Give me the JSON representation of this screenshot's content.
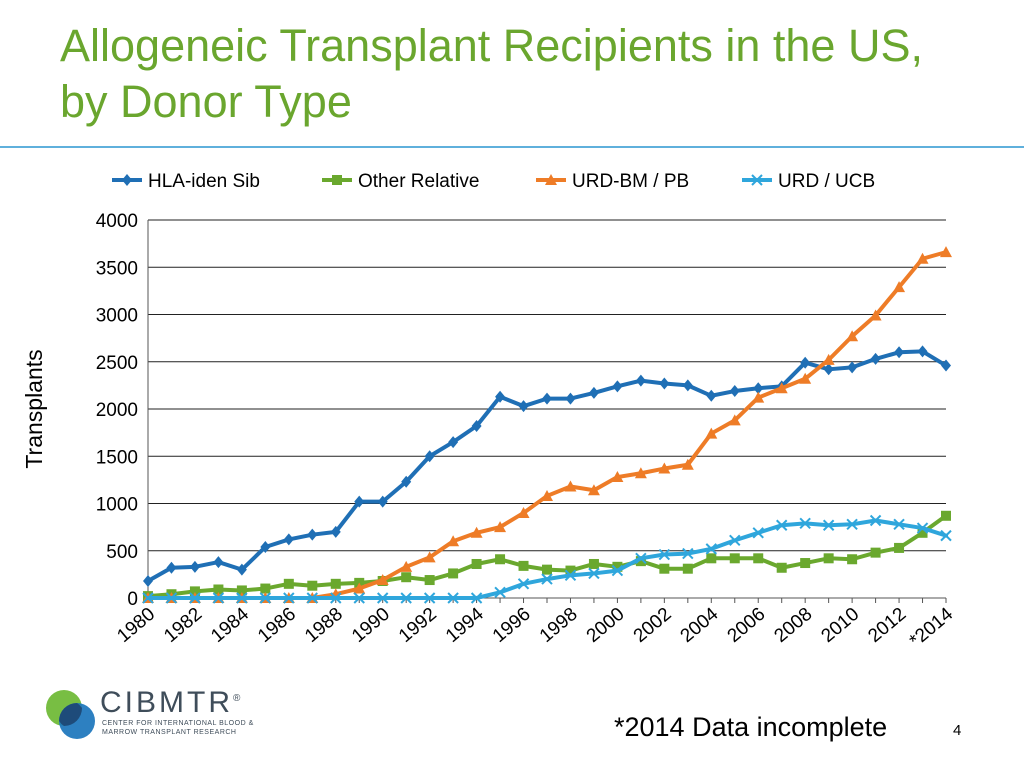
{
  "slide": {
    "title": "Allogeneic Transplant Recipients in the US, by Donor Type",
    "footnote": "*2014 Data incomplete",
    "page_number": "4"
  },
  "logo": {
    "name": "CIBMTR",
    "registered_mark": "®",
    "subtitle": "CENTER FOR INTERNATIONAL BLOOD & MARROW TRANSPLANT RESEARCH"
  },
  "colors": {
    "title": "#6aa62e",
    "rule": "#5fb0dc",
    "logo_green": "#78be43",
    "logo_blue": "#1b75bc"
  },
  "chart_data": {
    "type": "line",
    "title": "",
    "xlabel": "",
    "ylabel": "Transplants",
    "ylim": [
      0,
      4000
    ],
    "yticks": [
      0,
      500,
      1000,
      1500,
      2000,
      2500,
      3000,
      3500,
      4000
    ],
    "grid": "horizontal",
    "legend_position": "top",
    "x": [
      1980,
      1981,
      1982,
      1983,
      1984,
      1985,
      1986,
      1987,
      1988,
      1989,
      1990,
      1991,
      1992,
      1993,
      1994,
      1995,
      1996,
      1997,
      1998,
      1999,
      2000,
      2001,
      2002,
      2003,
      2004,
      2005,
      2006,
      2007,
      2008,
      2009,
      2010,
      2011,
      2012,
      2013,
      2014
    ],
    "x_tick_labels": [
      "1980",
      "1982",
      "1984",
      "1986",
      "1988",
      "1990",
      "1992",
      "1994",
      "1996",
      "1998",
      "2000",
      "2002",
      "2004",
      "2006",
      "2008",
      "2010",
      "2012",
      "*2014"
    ],
    "series": [
      {
        "name": "HLA-iden Sib",
        "color": "#1f6fb5",
        "marker": "diamond",
        "values": [
          180,
          320,
          330,
          380,
          300,
          540,
          620,
          670,
          700,
          1020,
          1020,
          1230,
          1500,
          1650,
          1820,
          2130,
          2030,
          2110,
          2110,
          2170,
          2240,
          2300,
          2270,
          2250,
          2140,
          2190,
          2220,
          2240,
          2490,
          2420,
          2440,
          2530,
          2600,
          2610,
          2460
        ]
      },
      {
        "name": "Other Relative",
        "color": "#6aa82e",
        "marker": "square",
        "values": [
          20,
          40,
          70,
          90,
          80,
          100,
          150,
          130,
          150,
          160,
          180,
          220,
          190,
          260,
          360,
          410,
          340,
          300,
          290,
          360,
          330,
          390,
          310,
          310,
          420,
          420,
          420,
          320,
          370,
          420,
          410,
          480,
          530,
          690,
          870
        ]
      },
      {
        "name": "URD-BM / PB",
        "color": "#ee7c27",
        "marker": "triangle",
        "values": [
          0,
          0,
          0,
          0,
          0,
          0,
          0,
          0,
          40,
          100,
          190,
          330,
          430,
          600,
          690,
          750,
          900,
          1080,
          1180,
          1140,
          1280,
          1320,
          1370,
          1410,
          1740,
          1880,
          2120,
          2220,
          2320,
          2520,
          2770,
          2990,
          3290,
          3590,
          3660
        ]
      },
      {
        "name": "URD / UCB",
        "color": "#2fa6dc",
        "marker": "x",
        "values": [
          0,
          0,
          0,
          0,
          0,
          0,
          0,
          0,
          0,
          0,
          0,
          0,
          0,
          0,
          0,
          60,
          150,
          200,
          240,
          260,
          290,
          420,
          460,
          470,
          520,
          610,
          690,
          770,
          790,
          770,
          780,
          820,
          780,
          740,
          660
        ]
      }
    ]
  }
}
